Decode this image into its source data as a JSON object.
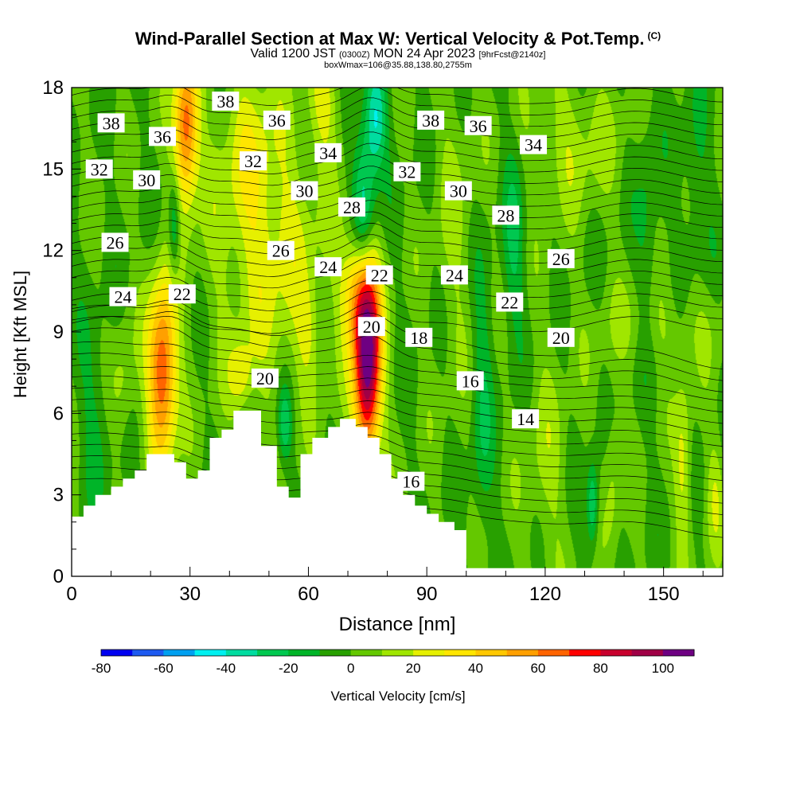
{
  "header": {
    "title": "Wind-Parallel Section at Max W: Vertical Velocity & Pot.Temp.",
    "title_mark": "(C)",
    "valid_prefix": "Valid 1200 JST",
    "valid_utc": "(0300Z)",
    "valid_date": "MON 24 Apr 2023",
    "forecast": "[9hrFcst@2140z]",
    "box_info": "boxWmax=106@35.88,138.80,2755m"
  },
  "chart_data": {
    "type": "heatmap",
    "title": "Wind-Parallel Section at Max W: Vertical Velocity & Pot.Temp.",
    "xlabel": "Distance [nm]",
    "ylabel": "Height [Kft MSL]",
    "xlim": [
      0,
      165
    ],
    "ylim": [
      0,
      18
    ],
    "x_ticks": [
      0,
      30,
      60,
      90,
      120,
      150
    ],
    "y_ticks": [
      0,
      3,
      6,
      9,
      12,
      15,
      18
    ],
    "colorbar": {
      "label": "Vertical Velocity [cm/s]",
      "tick_values": [
        -80,
        -60,
        -40,
        -20,
        0,
        20,
        40,
        60,
        80,
        100
      ],
      "range": [
        -80,
        110
      ],
      "colors": [
        "#0000f0",
        "#1e5af0",
        "#00a0f0",
        "#00f0f0",
        "#00dca0",
        "#00c850",
        "#00b428",
        "#28a000",
        "#64c800",
        "#a0e600",
        "#e6f000",
        "#ffe600",
        "#ffc800",
        "#ffa000",
        "#ff6400",
        "#ff0000",
        "#c8002d",
        "#a00046",
        "#6e0082"
      ]
    },
    "terrain_profile": [
      [
        0,
        2.2
      ],
      [
        3,
        2.2
      ],
      [
        3,
        2.6
      ],
      [
        6,
        2.6
      ],
      [
        6,
        3.0
      ],
      [
        10,
        3.0
      ],
      [
        10,
        3.3
      ],
      [
        13,
        3.3
      ],
      [
        13,
        3.6
      ],
      [
        16,
        3.6
      ],
      [
        16,
        3.9
      ],
      [
        19,
        3.9
      ],
      [
        19,
        4.5
      ],
      [
        26,
        4.5
      ],
      [
        26,
        4.2
      ],
      [
        29,
        4.2
      ],
      [
        29,
        3.6
      ],
      [
        32,
        3.6
      ],
      [
        32,
        3.9
      ],
      [
        35,
        3.9
      ],
      [
        35,
        5.1
      ],
      [
        38,
        5.1
      ],
      [
        38,
        5.4
      ],
      [
        41,
        5.4
      ],
      [
        41,
        6.1
      ],
      [
        48,
        6.1
      ],
      [
        48,
        4.8
      ],
      [
        52,
        4.8
      ],
      [
        52,
        3.3
      ],
      [
        55,
        3.3
      ],
      [
        55,
        2.9
      ],
      [
        58,
        2.9
      ],
      [
        58,
        4.5
      ],
      [
        61,
        4.5
      ],
      [
        61,
        5.1
      ],
      [
        65,
        5.1
      ],
      [
        65,
        5.5
      ],
      [
        68,
        5.5
      ],
      [
        68,
        5.8
      ],
      [
        72,
        5.8
      ],
      [
        72,
        5.5
      ],
      [
        75,
        5.5
      ],
      [
        75,
        5.1
      ],
      [
        78,
        5.1
      ],
      [
        78,
        4.5
      ],
      [
        81,
        4.5
      ],
      [
        81,
        3.6
      ],
      [
        84,
        3.6
      ],
      [
        84,
        3.0
      ],
      [
        87,
        3.0
      ],
      [
        87,
        2.6
      ],
      [
        90,
        2.6
      ],
      [
        90,
        2.3
      ],
      [
        93,
        2.3
      ],
      [
        93,
        2.0
      ],
      [
        97,
        2.0
      ],
      [
        97,
        1.7
      ],
      [
        100,
        1.7
      ],
      [
        100,
        0.3
      ],
      [
        165,
        0.3
      ]
    ],
    "w_features": [
      {
        "x": 23,
        "y": 7.5,
        "w": 75,
        "sx": 2.6,
        "sy": 2.4
      },
      {
        "x": 29,
        "y": 16.5,
        "w": 70,
        "sx": 2.2,
        "sy": 2.0
      },
      {
        "x": 75,
        "y": 7.6,
        "w": 106,
        "sx": 2.4,
        "sy": 2.4
      },
      {
        "x": 73,
        "y": 10.5,
        "w": 50,
        "sx": 3.0,
        "sy": 1.6
      },
      {
        "x": 64,
        "y": 17.5,
        "w": 22,
        "sx": 3.0,
        "sy": 1.5
      },
      {
        "x": 51,
        "y": 11.5,
        "w": 22,
        "sx": 10.0,
        "sy": 3.5
      },
      {
        "x": 45,
        "y": 15.5,
        "w": 18,
        "sx": 6.0,
        "sy": 2.5
      },
      {
        "x": 13,
        "y": 7.0,
        "w": 14,
        "sx": 2.2,
        "sy": 1.6
      },
      {
        "x": 43,
        "y": 7.4,
        "w": 22,
        "sx": 2.0,
        "sy": 0.9
      },
      {
        "x": 60,
        "y": 9.0,
        "w": 14,
        "sx": 2.0,
        "sy": 1.3
      },
      {
        "x": 74,
        "y": 13.5,
        "w": -42,
        "sx": 2.0,
        "sy": 2.0
      },
      {
        "x": 77,
        "y": 16.8,
        "w": -40,
        "sx": 2.0,
        "sy": 1.4
      },
      {
        "x": 26,
        "y": 12.8,
        "w": -30,
        "sx": 1.0,
        "sy": 1.3
      },
      {
        "x": 54,
        "y": 5.6,
        "w": -30,
        "sx": 1.3,
        "sy": 1.0
      },
      {
        "x": 132,
        "y": 2.6,
        "w": -34,
        "sx": 1.0,
        "sy": 1.1
      },
      {
        "x": 112,
        "y": 12.2,
        "w": -20,
        "sx": 2.0,
        "sy": 2.5
      },
      {
        "x": 146,
        "y": 12.6,
        "w": -14,
        "sx": 2.0,
        "sy": 3.0
      },
      {
        "x": 104,
        "y": 6.4,
        "w": -18,
        "sx": 2.0,
        "sy": 3.5
      },
      {
        "x": 6,
        "y": 6.0,
        "w": -12,
        "sx": 3.0,
        "sy": 2.5
      },
      {
        "x": 158,
        "y": 14.5,
        "w": -12,
        "sx": 2.5,
        "sy": 2.5
      },
      {
        "x": 127,
        "y": 16.0,
        "w": 16,
        "sx": 8.0,
        "sy": 1.8
      },
      {
        "x": 97,
        "y": 13.0,
        "w": 10,
        "sx": 4.0,
        "sy": 4.5
      },
      {
        "x": 150,
        "y": 9.3,
        "w": 10,
        "sx": 14.0,
        "sy": 1.2
      },
      {
        "x": 155,
        "y": 4.0,
        "w": 24,
        "sx": 1.5,
        "sy": 2.2
      },
      {
        "x": 137,
        "y": 3.6,
        "w": 14,
        "sx": 1.5,
        "sy": 2.2
      },
      {
        "x": 120,
        "y": 4.0,
        "w": 12,
        "sx": 4.0,
        "sy": 3.0
      },
      {
        "x": 163,
        "y": 3.0,
        "w": 16,
        "sx": 1.5,
        "sy": 1.5
      }
    ],
    "theta_contour_labels": [
      {
        "text": "38",
        "x": 10,
        "y": 16.7
      },
      {
        "text": "36",
        "x": 23,
        "y": 16.2
      },
      {
        "text": "38",
        "x": 39,
        "y": 17.5
      },
      {
        "text": "36",
        "x": 52,
        "y": 16.8
      },
      {
        "text": "34",
        "x": 65,
        "y": 15.6
      },
      {
        "text": "38",
        "x": 91,
        "y": 16.8
      },
      {
        "text": "36",
        "x": 103,
        "y": 16.6
      },
      {
        "text": "34",
        "x": 117,
        "y": 15.9
      },
      {
        "text": "32",
        "x": 7,
        "y": 15.0
      },
      {
        "text": "30",
        "x": 19,
        "y": 14.6
      },
      {
        "text": "32",
        "x": 46,
        "y": 15.3
      },
      {
        "text": "30",
        "x": 59,
        "y": 14.2
      },
      {
        "text": "28",
        "x": 71,
        "y": 13.6
      },
      {
        "text": "32",
        "x": 85,
        "y": 14.9
      },
      {
        "text": "30",
        "x": 98,
        "y": 14.2
      },
      {
        "text": "28",
        "x": 110,
        "y": 13.3
      },
      {
        "text": "26",
        "x": 11,
        "y": 12.3
      },
      {
        "text": "26",
        "x": 53,
        "y": 12.0
      },
      {
        "text": "24",
        "x": 65,
        "y": 11.4
      },
      {
        "text": "22",
        "x": 78,
        "y": 11.1
      },
      {
        "text": "24",
        "x": 97,
        "y": 11.1
      },
      {
        "text": "26",
        "x": 124,
        "y": 11.7
      },
      {
        "text": "24",
        "x": 13,
        "y": 10.3
      },
      {
        "text": "22",
        "x": 28,
        "y": 10.4
      },
      {
        "text": "20",
        "x": 76,
        "y": 9.2
      },
      {
        "text": "18",
        "x": 88,
        "y": 8.8
      },
      {
        "text": "22",
        "x": 111,
        "y": 10.1
      },
      {
        "text": "20",
        "x": 124,
        "y": 8.8
      },
      {
        "text": "20",
        "x": 49,
        "y": 7.3
      },
      {
        "text": "16",
        "x": 101,
        "y": 7.2
      },
      {
        "text": "14",
        "x": 115,
        "y": 5.8
      },
      {
        "text": "16",
        "x": 86,
        "y": 3.5
      }
    ]
  }
}
